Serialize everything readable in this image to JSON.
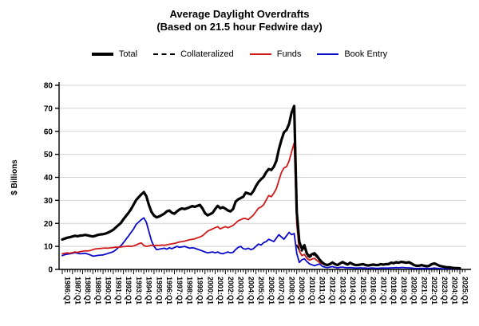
{
  "title": "Average Daylight Overdrafts",
  "subtitle": "(Based on 21.5 hour Fedwire day)",
  "colors": {
    "total": "#000000",
    "collateralized": "#000000",
    "funds": "#D01A1A",
    "book_entry": "#0A0ACC",
    "gridline": "#D3D3D3",
    "axis": "#000000"
  },
  "legend": {
    "items": [
      {
        "key": "total",
        "label": "Total",
        "style": "solid-thick"
      },
      {
        "key": "collateralized",
        "label": "Collateralized",
        "style": "dashed"
      },
      {
        "key": "funds",
        "label": "Funds",
        "style": "solid"
      },
      {
        "key": "book_entry",
        "label": "Book Entry",
        "style": "solid"
      }
    ]
  },
  "chart_data": {
    "type": "line",
    "title": "Average Daylight Overdrafts",
    "subtitle": "(Based on 21.5 hour Fedwire day)",
    "ylabel": "$ Billions",
    "xlabel": "",
    "ylim": [
      0,
      80
    ],
    "ytick_step": 10,
    "ytick_labels": [
      "0",
      "10",
      "20",
      "30",
      "40",
      "50",
      "60",
      "70",
      "80"
    ],
    "grid": "horizontal-light",
    "legend_position": "top-center",
    "x_frequency": "quarterly",
    "x_start": "1986:Q1",
    "x_end": "2025:Q1",
    "x_year_labels": [
      "1986:Q1",
      "1987:Q1",
      "1988:Q1",
      "1989:Q1",
      "1990:Q1",
      "1991:Q1",
      "1992:Q1",
      "1993:Q1",
      "1994:Q1",
      "1995:Q1",
      "1996:Q1",
      "1997:Q1",
      "1998:Q1",
      "1999:Q1",
      "2000:Q1",
      "2001:Q1",
      "2002:Q1",
      "2003:Q1",
      "2004:Q1",
      "2005:Q1",
      "2006:Q1",
      "2007:Q1",
      "2008:Q1",
      "2009:Q1",
      "2010:Q1",
      "2011:Q1",
      "2012:Q1",
      "2013:Q1",
      "2014:Q1",
      "2015:Q1",
      "2016:Q1",
      "2017:Q1",
      "2018:Q1",
      "2019:Q1",
      "2020:Q1",
      "2021:Q1",
      "2022:Q1",
      "2023:Q1",
      "2024:Q1",
      "2025:Q1"
    ],
    "series": [
      {
        "name": "Total",
        "key": "total",
        "line": "solid",
        "width": 3.2,
        "start_index": 0,
        "values": [
          13.0,
          13.4,
          13.8,
          14.0,
          14.3,
          14.6,
          14.4,
          14.7,
          14.8,
          15.0,
          14.8,
          14.5,
          14.3,
          14.6,
          15.0,
          15.2,
          15.3,
          15.6,
          16.0,
          16.6,
          17.2,
          18.2,
          19.2,
          20.2,
          21.8,
          23.2,
          24.6,
          26.2,
          28.2,
          30.2,
          31.4,
          32.6,
          33.6,
          31.8,
          28.0,
          25.0,
          23.4,
          22.6,
          23.0,
          23.6,
          24.2,
          25.2,
          25.6,
          24.6,
          24.2,
          25.2,
          26.0,
          26.5,
          26.2,
          26.6,
          27.0,
          27.5,
          27.2,
          27.6,
          28.0,
          26.5,
          24.4,
          23.5,
          24.0,
          24.6,
          26.2,
          27.6,
          26.6,
          27.0,
          26.4,
          25.6,
          25.2,
          26.2,
          29.4,
          30.4,
          31.0,
          31.6,
          33.4,
          33.0,
          32.6,
          34.0,
          36.2,
          38.0,
          39.2,
          40.2,
          42.2,
          43.6,
          43.2,
          44.6,
          47.2,
          52.2,
          56.2,
          59.6,
          60.6,
          63.2,
          68.2,
          71.0,
          25.0,
          12.0,
          9.0,
          10.5,
          6.8,
          5.8,
          6.6,
          7.0,
          5.8,
          4.2,
          3.0,
          2.2,
          1.9,
          2.3,
          3.0,
          2.3,
          1.9,
          2.6,
          3.2,
          2.6,
          2.1,
          2.9,
          2.3,
          1.9,
          1.9,
          2.1,
          2.3,
          1.9,
          1.7,
          1.9,
          2.1,
          1.9,
          1.9,
          2.3,
          2.1,
          2.3,
          2.3,
          2.9,
          2.7,
          3.1,
          2.9,
          3.3,
          3.1,
          2.9,
          3.1,
          2.6,
          1.9,
          1.6,
          1.6,
          1.9,
          1.6,
          1.4,
          1.6,
          2.3,
          2.6,
          2.1,
          1.6,
          1.3,
          1.1,
          0.9,
          0.9,
          0.7,
          0.6,
          0.6,
          0.5
        ]
      },
      {
        "name": "Collateralized",
        "key": "collateralized",
        "line": "dashed",
        "width": 1.8,
        "start_index": 92,
        "values": [
          10.5,
          8.5,
          8.0,
          9.5,
          6.0,
          5.2,
          6.0,
          6.4,
          5.2,
          3.8,
          2.7,
          2.0,
          1.8,
          2.2,
          2.9,
          2.2,
          1.8,
          2.5,
          3.1,
          2.5,
          2.0,
          2.8,
          2.2,
          1.8,
          1.8,
          2.0,
          2.2,
          1.8,
          1.6,
          1.8,
          2.0,
          1.8,
          1.8,
          2.2,
          2.0,
          2.2,
          2.2,
          2.8,
          2.6,
          3.0,
          2.8,
          3.2,
          3.0,
          2.8,
          3.0,
          2.5,
          1.8,
          1.5,
          1.5,
          1.8,
          1.5,
          1.3,
          1.5,
          2.2,
          2.5,
          2.0,
          1.5,
          1.2,
          1.0,
          0.8,
          0.8,
          0.6,
          0.5,
          0.5,
          0.4
        ]
      },
      {
        "name": "Funds",
        "key": "funds",
        "line": "solid",
        "width": 1.8,
        "start_index": 0,
        "values": [
          6.8,
          7.0,
          7.2,
          7.0,
          7.3,
          7.6,
          7.4,
          7.7,
          7.9,
          8.1,
          8.0,
          8.2,
          8.6,
          8.9,
          9.0,
          9.1,
          9.2,
          9.3,
          9.2,
          9.4,
          9.5,
          9.7,
          9.6,
          9.8,
          9.9,
          10.0,
          10.1,
          10.0,
          10.2,
          10.6,
          11.2,
          11.5,
          10.4,
          10.0,
          10.2,
          10.5,
          10.3,
          10.5,
          10.4,
          10.6,
          10.5,
          10.7,
          10.9,
          11.1,
          11.3,
          11.6,
          11.9,
          12.1,
          12.3,
          12.6,
          12.9,
          13.1,
          13.3,
          13.7,
          14.1,
          14.6,
          15.6,
          16.6,
          17.1,
          17.6,
          18.1,
          18.6,
          17.6,
          18.1,
          18.6,
          18.1,
          18.6,
          19.1,
          20.1,
          21.1,
          21.6,
          22.1,
          22.1,
          21.6,
          22.6,
          23.6,
          25.1,
          26.6,
          27.1,
          28.1,
          30.1,
          32.1,
          31.6,
          33.1,
          35.1,
          38.6,
          42.1,
          44.1,
          44.6,
          47.1,
          51.1,
          55.0,
          20.0,
          8.0,
          6.0,
          6.5,
          4.8,
          4.0,
          4.5,
          4.8,
          3.8,
          3.0,
          2.5,
          2.0,
          1.7,
          2.1,
          2.8,
          2.1,
          1.7,
          2.4,
          3.0,
          2.4,
          1.9,
          2.7,
          2.1,
          1.7,
          1.7,
          1.9,
          2.1,
          1.7,
          1.5,
          1.7,
          1.9,
          1.7,
          1.7,
          2.1,
          1.9,
          2.1,
          2.1,
          2.7,
          2.5,
          2.9,
          2.7,
          3.1,
          2.9,
          2.7,
          2.9,
          2.4,
          1.7,
          1.4,
          1.4,
          1.7,
          1.4,
          1.2,
          1.4,
          2.1,
          2.4,
          1.9,
          1.4,
          1.1,
          0.9,
          0.7,
          0.7,
          0.5,
          0.4,
          0.4,
          0.3
        ]
      },
      {
        "name": "Book Entry",
        "key": "book_entry",
        "line": "solid",
        "width": 1.8,
        "start_index": 0,
        "values": [
          6.0,
          6.4,
          6.6,
          6.8,
          7.0,
          7.3,
          7.0,
          6.8,
          6.9,
          7.0,
          6.7,
          6.3,
          5.8,
          5.9,
          6.1,
          6.2,
          6.3,
          6.6,
          7.0,
          7.3,
          7.7,
          8.5,
          9.5,
          10.3,
          11.6,
          13.1,
          14.5,
          16.1,
          17.6,
          19.6,
          20.6,
          21.6,
          22.4,
          20.5,
          16.5,
          12.5,
          10.0,
          8.6,
          8.8,
          9.0,
          9.2,
          8.8,
          9.4,
          9.0,
          9.5,
          10.0,
          9.6,
          9.8,
          10.0,
          9.6,
          9.2,
          9.4,
          9.2,
          8.8,
          8.4,
          8.0,
          7.6,
          7.2,
          7.4,
          7.6,
          7.2,
          7.6,
          7.0,
          6.8,
          7.2,
          7.6,
          7.2,
          7.4,
          8.6,
          9.6,
          10.0,
          9.0,
          8.8,
          9.2,
          8.6,
          9.0,
          10.0,
          11.0,
          10.6,
          11.6,
          12.1,
          13.1,
          12.6,
          12.1,
          13.6,
          15.1,
          14.1,
          13.1,
          14.6,
          16.1,
          15.1,
          15.6,
          7.0,
          3.0,
          4.2,
          4.6,
          3.4,
          2.4,
          2.0,
          1.6,
          2.0,
          2.4,
          1.4,
          1.0,
          0.8,
          1.0,
          1.2,
          0.9,
          0.7,
          0.9,
          1.0,
          0.8,
          0.7,
          0.8,
          0.7,
          0.6,
          0.6,
          0.7,
          0.6,
          0.6,
          0.5,
          0.6,
          0.6,
          0.5,
          0.5,
          0.6,
          0.6,
          0.6,
          0.6,
          0.7,
          0.7,
          0.8,
          0.7,
          0.8,
          0.8,
          0.7,
          0.7,
          0.6,
          0.5,
          0.4,
          0.4,
          0.5,
          0.4,
          0.4,
          0.4,
          0.5,
          0.6,
          0.5,
          0.4,
          0.3,
          0.3,
          0.3,
          0.3,
          0.2,
          0.2,
          0.2,
          0.2
        ]
      }
    ]
  }
}
